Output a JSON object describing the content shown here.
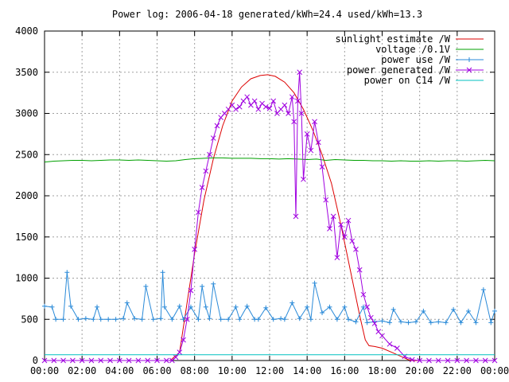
{
  "chart_data": {
    "type": "line",
    "title": "Power log: 2006-04-18 generated/kWh=24.4 used/kWh=13.3",
    "xlim": [
      0,
      24
    ],
    "ylim": [
      0,
      4000
    ],
    "x_tick_labels": [
      "00:00",
      "02:00",
      "04:00",
      "06:00",
      "08:00",
      "10:00",
      "12:00",
      "14:00",
      "16:00",
      "18:00",
      "20:00",
      "22:00",
      "00:00"
    ],
    "y_tick_labels": [
      "0",
      "500",
      "1000",
      "1500",
      "2000",
      "2500",
      "3000",
      "3500",
      "4000"
    ],
    "grid": true,
    "legend_position": "top-right",
    "series": [
      {
        "name": "sunlight estimate /W",
        "color": "#dd0000",
        "marker": "none",
        "x": [
          0,
          6.7,
          7.2,
          7.6,
          8.0,
          8.5,
          9.0,
          9.5,
          10.0,
          10.5,
          11.0,
          11.5,
          11.9,
          12.3,
          12.8,
          13.3,
          13.8,
          14.3,
          14.8,
          15.3,
          15.8,
          16.3,
          16.8,
          17.1,
          17.3,
          17.6,
          18.0,
          18.5,
          19.0,
          19.4,
          19.6,
          24
        ],
        "y": [
          0,
          0,
          100,
          700,
          1300,
          1950,
          2450,
          2850,
          3150,
          3320,
          3420,
          3460,
          3470,
          3450,
          3380,
          3250,
          3050,
          2800,
          2500,
          2150,
          1650,
          1100,
          550,
          250,
          180,
          170,
          150,
          100,
          50,
          10,
          0,
          0
        ]
      },
      {
        "name": "voltage /0.1V",
        "color": "#00a000",
        "marker": "none",
        "x": [
          0,
          0.5,
          1,
          1.5,
          2,
          2.5,
          3,
          3.5,
          4,
          4.5,
          5,
          5.5,
          6,
          6.5,
          7,
          7.5,
          8,
          8.5,
          9,
          9.5,
          10,
          10.5,
          11,
          11.5,
          12,
          12.5,
          13,
          13.5,
          14,
          14.5,
          15,
          15.5,
          16,
          16.5,
          17,
          17.5,
          18,
          18.5,
          19,
          19.5,
          20,
          20.5,
          21,
          21.5,
          22,
          22.5,
          23,
          23.5,
          24
        ],
        "y": [
          2410,
          2420,
          2425,
          2430,
          2430,
          2425,
          2430,
          2435,
          2435,
          2430,
          2435,
          2430,
          2425,
          2420,
          2425,
          2440,
          2450,
          2455,
          2460,
          2460,
          2455,
          2455,
          2455,
          2450,
          2450,
          2445,
          2450,
          2445,
          2440,
          2445,
          2430,
          2440,
          2435,
          2430,
          2430,
          2425,
          2425,
          2420,
          2425,
          2420,
          2420,
          2425,
          2420,
          2425,
          2425,
          2420,
          2425,
          2430,
          2425
        ]
      },
      {
        "name": "power use /W",
        "color": "#2a8ad8",
        "marker": "plus",
        "x": [
          0.0,
          0.4,
          0.6,
          1.0,
          1.2,
          1.4,
          1.8,
          2.2,
          2.6,
          2.8,
          3.0,
          3.4,
          3.8,
          4.2,
          4.4,
          4.8,
          5.2,
          5.4,
          5.8,
          6.2,
          6.3,
          6.4,
          6.8,
          7.2,
          7.4,
          7.8,
          8.2,
          8.4,
          8.6,
          8.8,
          9.0,
          9.4,
          9.8,
          10.2,
          10.4,
          10.8,
          11.2,
          11.4,
          11.8,
          12.2,
          12.6,
          12.8,
          13.2,
          13.6,
          14.0,
          14.2,
          14.4,
          14.8,
          15.2,
          15.6,
          16.0,
          16.2,
          16.6,
          17.0,
          17.2,
          17.6,
          18.0,
          18.4,
          18.6,
          19.0,
          19.4,
          19.8,
          20.2,
          20.6,
          21.0,
          21.4,
          21.8,
          22.2,
          22.6,
          23.0,
          23.4,
          23.8,
          24.0
        ],
        "y": [
          660,
          650,
          500,
          500,
          1070,
          660,
          500,
          510,
          500,
          650,
          500,
          500,
          500,
          510,
          700,
          510,
          500,
          900,
          500,
          510,
          1070,
          650,
          500,
          660,
          500,
          650,
          500,
          900,
          650,
          510,
          930,
          500,
          500,
          650,
          500,
          660,
          500,
          500,
          640,
          500,
          510,
          500,
          700,
          510,
          650,
          500,
          940,
          580,
          650,
          500,
          650,
          500,
          470,
          650,
          460,
          470,
          480,
          460,
          620,
          470,
          460,
          470,
          600,
          460,
          470,
          460,
          620,
          460,
          600,
          460,
          860,
          460,
          600
        ]
      },
      {
        "name": "power generated /W",
        "color": "#a000e0",
        "marker": "x",
        "x": [
          0.0,
          0.5,
          1.0,
          1.5,
          2.0,
          2.5,
          3.0,
          3.5,
          4.0,
          4.5,
          5.0,
          5.5,
          6.0,
          6.5,
          6.8,
          7.0,
          7.2,
          7.4,
          7.6,
          7.8,
          8.0,
          8.2,
          8.4,
          8.6,
          8.8,
          9.0,
          9.2,
          9.4,
          9.6,
          9.8,
          10.0,
          10.2,
          10.4,
          10.6,
          10.8,
          11.0,
          11.2,
          11.4,
          11.6,
          11.8,
          12.0,
          12.2,
          12.4,
          12.6,
          12.8,
          13.0,
          13.2,
          13.3,
          13.4,
          13.5,
          13.6,
          13.7,
          13.8,
          14.0,
          14.2,
          14.4,
          14.6,
          14.8,
          15.0,
          15.2,
          15.4,
          15.6,
          15.8,
          16.0,
          16.2,
          16.4,
          16.6,
          16.8,
          17.0,
          17.2,
          17.4,
          17.6,
          17.8,
          18.0,
          18.4,
          18.8,
          19.2,
          19.6,
          20.0,
          20.5,
          21.0,
          21.5,
          22.0,
          22.5,
          23.0,
          23.5,
          24.0
        ],
        "y": [
          0,
          0,
          0,
          0,
          0,
          0,
          0,
          0,
          0,
          0,
          0,
          0,
          0,
          0,
          0,
          40,
          100,
          250,
          500,
          850,
          1350,
          1800,
          2100,
          2300,
          2500,
          2700,
          2850,
          2950,
          3000,
          3050,
          3100,
          3050,
          3080,
          3150,
          3200,
          3100,
          3150,
          3050,
          3120,
          3080,
          3060,
          3150,
          3000,
          3050,
          3100,
          3000,
          3200,
          2900,
          1750,
          3150,
          3500,
          3000,
          2200,
          2750,
          2550,
          2900,
          2650,
          2350,
          1950,
          1600,
          1750,
          1250,
          1650,
          1500,
          1700,
          1450,
          1350,
          1100,
          800,
          650,
          520,
          450,
          350,
          300,
          200,
          150,
          50,
          10,
          0,
          0,
          0,
          0,
          0,
          0,
          0,
          0,
          0
        ]
      },
      {
        "name": "power on C14 /W",
        "color": "#00c0c0",
        "marker": "none",
        "x": [
          0,
          24
        ],
        "y": [
          70,
          70
        ]
      }
    ]
  }
}
